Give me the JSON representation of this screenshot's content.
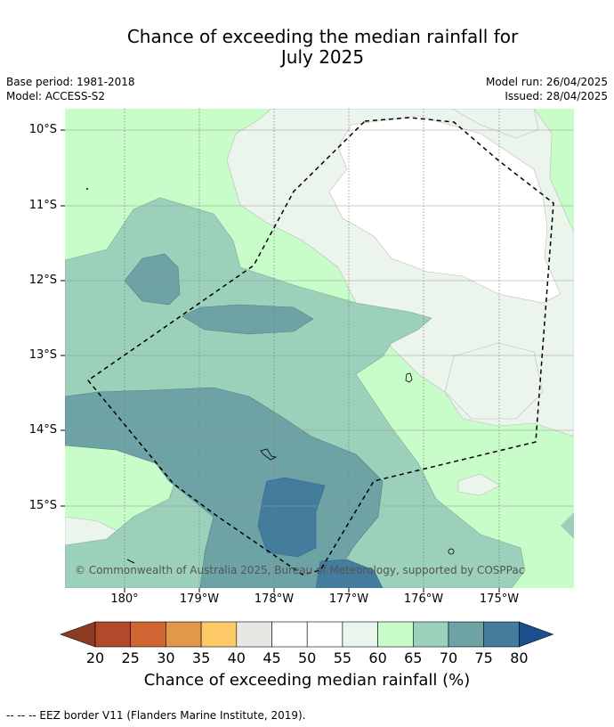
{
  "title_line1": "Chance of exceeding the median rainfall for",
  "title_line2": "July 2025",
  "meta_left": {
    "base_period": "Base period: 1981-2018",
    "model": "Model: ACCESS-S2"
  },
  "meta_right": {
    "model_run": "Model run: 26/04/2025",
    "issued": "Issued: 28/04/2025"
  },
  "lat_labels": [
    "10°S",
    "11°S",
    "12°S",
    "13°S",
    "14°S",
    "15°S"
  ],
  "lon_labels": [
    "180°",
    "179°W",
    "178°W",
    "177°W",
    "176°W",
    "175°W"
  ],
  "copyright": "© Commonwealth of Australia 2025, Bureau of Meteorology, supported by COSPPac",
  "colorbar": {
    "title": "Chance of exceeding median rainfall (%)",
    "ticks": [
      "20",
      "25",
      "30",
      "35",
      "40",
      "45",
      "50",
      "55",
      "60",
      "65",
      "70",
      "75",
      "80"
    ],
    "colors": [
      "#8c3a22",
      "#b2492a",
      "#cf6533",
      "#e29849",
      "#fdc969",
      "#e9e7e3",
      "#ffffff",
      "#ffffff",
      "#ebf5eb",
      "#c8fcc8",
      "#9bd0bb",
      "#6ea3a6",
      "#447c9e",
      "#1d4f8c"
    ]
  },
  "footnote": "--  --  -- EEZ border V11 (Flanders Marine Institute, 2019)."
}
